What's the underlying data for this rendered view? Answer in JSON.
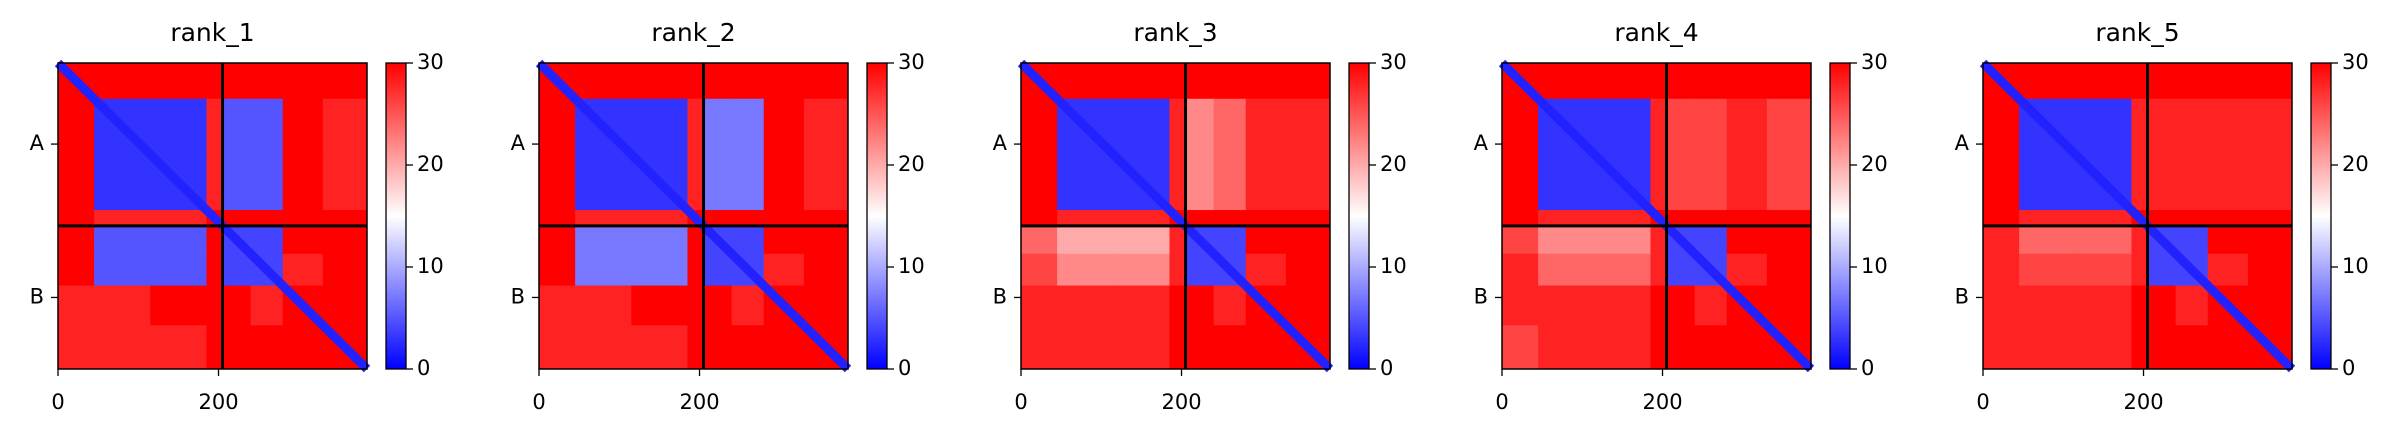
{
  "chart_data": [
    {
      "type": "heatmap",
      "title": "rank_1",
      "x_bins": [
        0,
        45,
        115,
        185,
        205,
        240,
        280,
        330,
        385
      ],
      "z": [
        [
          30,
          30,
          30,
          30,
          30,
          30,
          30,
          30
        ],
        [
          30,
          3,
          3,
          28,
          5,
          5,
          30,
          28
        ],
        [
          30,
          3,
          3,
          28,
          5,
          5,
          30,
          28
        ],
        [
          30,
          28,
          28,
          30,
          30,
          30,
          30,
          30
        ],
        [
          30,
          5,
          5,
          30,
          4,
          4,
          30,
          30
        ],
        [
          30,
          5,
          5,
          30,
          4,
          4,
          28,
          30
        ],
        [
          28,
          28,
          30,
          30,
          30,
          28,
          30,
          30
        ],
        [
          28,
          28,
          28,
          30,
          30,
          30,
          30,
          30
        ]
      ],
      "diagonal_value": 2,
      "chain_boundaries": [
        205
      ],
      "xlim": [
        0,
        385
      ],
      "ylim": [
        385,
        0
      ],
      "xticks": [
        0,
        200
      ],
      "yticks": [
        {
          "value": 102,
          "label": "A"
        },
        {
          "value": 295,
          "label": "B"
        }
      ],
      "clim": [
        0,
        30
      ],
      "cticks": [
        0,
        10,
        20,
        30
      ],
      "colormap": [
        "#0000ff",
        "#ffffff",
        "#ff0000"
      ]
    },
    {
      "type": "heatmap",
      "title": "rank_2",
      "x_bins": [
        0,
        45,
        115,
        185,
        205,
        240,
        280,
        330,
        385
      ],
      "z": [
        [
          30,
          30,
          30,
          30,
          30,
          30,
          30,
          30
        ],
        [
          30,
          3,
          3,
          28,
          7,
          7,
          30,
          28
        ],
        [
          30,
          3,
          3,
          28,
          7,
          7,
          30,
          28
        ],
        [
          30,
          28,
          28,
          30,
          30,
          30,
          30,
          30
        ],
        [
          30,
          7,
          7,
          30,
          4,
          4,
          30,
          30
        ],
        [
          30,
          7,
          7,
          30,
          4,
          4,
          28,
          30
        ],
        [
          28,
          28,
          30,
          30,
          30,
          28,
          30,
          30
        ],
        [
          28,
          28,
          28,
          30,
          30,
          30,
          30,
          30
        ]
      ],
      "diagonal_value": 2,
      "chain_boundaries": [
        205
      ],
      "xlim": [
        0,
        385
      ],
      "ylim": [
        385,
        0
      ],
      "xticks": [
        0,
        200
      ],
      "yticks": [
        {
          "value": 102,
          "label": "A"
        },
        {
          "value": 295,
          "label": "B"
        }
      ],
      "clim": [
        0,
        30
      ],
      "cticks": [
        0,
        10,
        20,
        30
      ],
      "colormap": [
        "#0000ff",
        "#ffffff",
        "#ff0000"
      ]
    },
    {
      "type": "heatmap",
      "title": "rank_3",
      "x_bins": [
        0,
        45,
        115,
        185,
        205,
        240,
        280,
        330,
        385
      ],
      "z": [
        [
          30,
          30,
          30,
          30,
          30,
          30,
          30,
          30
        ],
        [
          30,
          3,
          3,
          28,
          22,
          24,
          28,
          28
        ],
        [
          30,
          3,
          3,
          28,
          22,
          24,
          28,
          28
        ],
        [
          30,
          28,
          28,
          30,
          30,
          30,
          30,
          30
        ],
        [
          24,
          20,
          20,
          28,
          4,
          4,
          30,
          30
        ],
        [
          26,
          22,
          22,
          28,
          4,
          4,
          28,
          30
        ],
        [
          28,
          28,
          28,
          30,
          30,
          28,
          30,
          30
        ],
        [
          28,
          28,
          28,
          30,
          30,
          30,
          30,
          30
        ]
      ],
      "diagonal_value": 2,
      "chain_boundaries": [
        205
      ],
      "xlim": [
        0,
        385
      ],
      "ylim": [
        385,
        0
      ],
      "xticks": [
        0,
        200
      ],
      "yticks": [
        {
          "value": 102,
          "label": "A"
        },
        {
          "value": 295,
          "label": "B"
        }
      ],
      "clim": [
        0,
        30
      ],
      "cticks": [
        0,
        10,
        20,
        30
      ],
      "colormap": [
        "#0000ff",
        "#ffffff",
        "#ff0000"
      ]
    },
    {
      "type": "heatmap",
      "title": "rank_4",
      "x_bins": [
        0,
        45,
        115,
        185,
        205,
        240,
        280,
        330,
        385
      ],
      "z": [
        [
          30,
          30,
          30,
          30,
          30,
          30,
          30,
          30
        ],
        [
          30,
          3,
          3,
          28,
          26,
          26,
          28,
          26
        ],
        [
          30,
          3,
          3,
          28,
          26,
          26,
          28,
          26
        ],
        [
          30,
          28,
          28,
          30,
          30,
          30,
          30,
          30
        ],
        [
          26,
          22,
          22,
          28,
          4,
          4,
          30,
          30
        ],
        [
          28,
          24,
          24,
          28,
          4,
          4,
          28,
          30
        ],
        [
          28,
          28,
          28,
          30,
          30,
          28,
          30,
          30
        ],
        [
          26,
          28,
          28,
          30,
          30,
          30,
          30,
          30
        ]
      ],
      "diagonal_value": 2,
      "chain_boundaries": [
        205
      ],
      "xlim": [
        0,
        385
      ],
      "ylim": [
        385,
        0
      ],
      "xticks": [
        0,
        200
      ],
      "yticks": [
        {
          "value": 102,
          "label": "A"
        },
        {
          "value": 295,
          "label": "B"
        }
      ],
      "clim": [
        0,
        30
      ],
      "cticks": [
        0,
        10,
        20,
        30
      ],
      "colormap": [
        "#0000ff",
        "#ffffff",
        "#ff0000"
      ]
    },
    {
      "type": "heatmap",
      "title": "rank_5",
      "x_bins": [
        0,
        45,
        115,
        185,
        205,
        240,
        280,
        330,
        385
      ],
      "z": [
        [
          30,
          30,
          30,
          30,
          30,
          30,
          30,
          30
        ],
        [
          30,
          3,
          3,
          28,
          28,
          28,
          28,
          28
        ],
        [
          30,
          3,
          3,
          28,
          28,
          28,
          28,
          28
        ],
        [
          30,
          28,
          28,
          30,
          30,
          30,
          30,
          30
        ],
        [
          28,
          24,
          24,
          28,
          4,
          4,
          30,
          30
        ],
        [
          28,
          26,
          26,
          28,
          4,
          4,
          28,
          30
        ],
        [
          28,
          28,
          28,
          30,
          30,
          28,
          30,
          30
        ],
        [
          28,
          28,
          28,
          30,
          30,
          30,
          30,
          30
        ]
      ],
      "diagonal_value": 2,
      "chain_boundaries": [
        205
      ],
      "xlim": [
        0,
        385
      ],
      "ylim": [
        385,
        0
      ],
      "xticks": [
        0,
        200
      ],
      "yticks": [
        {
          "value": 102,
          "label": "A"
        },
        {
          "value": 295,
          "label": "B"
        }
      ],
      "clim": [
        0,
        30
      ],
      "cticks": [
        0,
        10,
        20,
        30
      ],
      "colormap": [
        "#0000ff",
        "#ffffff",
        "#ff0000"
      ]
    }
  ]
}
